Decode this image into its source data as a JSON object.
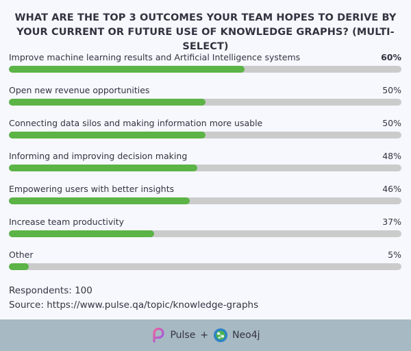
{
  "chart_data": {
    "type": "bar",
    "orientation": "horizontal",
    "title": "WHAT ARE THE TOP 3 OUTCOMES YOUR TEAM HOPES TO DERIVE BY YOUR CURRENT OR FUTURE USE OF KNOWLEDGE GRAPHS? (MULTI-SELECT)",
    "categories": [
      "Improve machine learning results and Artificial Intelligence systems",
      "Open new revenue opportunities",
      "Connecting data silos and making information more usable",
      "Informing and improving decision making",
      "Empowering users with better insights",
      "Increase team productivity",
      "Other"
    ],
    "values": [
      60,
      50,
      50,
      48,
      46,
      37,
      5
    ],
    "value_labels": [
      "60%",
      "50%",
      "50%",
      "48%",
      "46%",
      "37%",
      "5%"
    ],
    "unit": "%",
    "xlim": [
      0,
      100
    ],
    "bar_color": "#5cb346",
    "track_color": "#cbcbcb"
  },
  "respondents": "Respondents: 100",
  "source": "Source: https://www.pulse.qa/topic/knowledge-graphs",
  "footer": {
    "pulse": "Pulse",
    "plus": "+",
    "neo4j": "Neo4j"
  }
}
